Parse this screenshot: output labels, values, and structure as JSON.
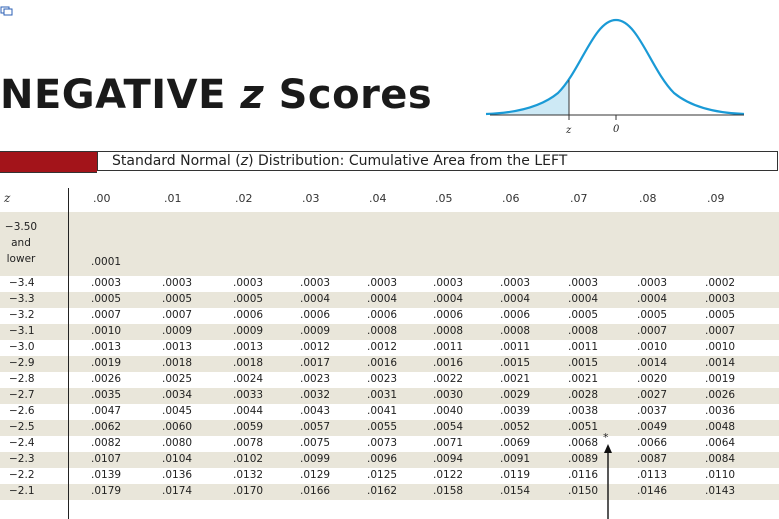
{
  "title": {
    "prefix": "NEGATIVE ",
    "z": "z",
    "suffix": " Scores"
  },
  "curve": {
    "label_z": "z",
    "label_zero": "0",
    "line_color": "#1a9ad6",
    "fill_color": "#cde9f5"
  },
  "header": {
    "before": "Standard Normal (",
    "z": "z",
    "after": ") Distribution: Cumulative Area from the LEFT",
    "accent_color": "#a3141a"
  },
  "columns": [
    "z",
    ".00",
    ".01",
    ".02",
    ".03",
    ".04",
    ".05",
    ".06",
    ".07",
    ".08",
    ".09"
  ],
  "first_row": {
    "label_lines": [
      "−3.50",
      "and",
      "lower"
    ],
    "value": ".0001"
  },
  "rows": [
    {
      "z": "−3.4",
      "values": [
        ".0003",
        ".0003",
        ".0003",
        ".0003",
        ".0003",
        ".0003",
        ".0003",
        ".0003",
        ".0003",
        ".0002"
      ]
    },
    {
      "z": "−3.3",
      "values": [
        ".0005",
        ".0005",
        ".0005",
        ".0004",
        ".0004",
        ".0004",
        ".0004",
        ".0004",
        ".0004",
        ".0003"
      ]
    },
    {
      "z": "−3.2",
      "values": [
        ".0007",
        ".0007",
        ".0006",
        ".0006",
        ".0006",
        ".0006",
        ".0006",
        ".0005",
        ".0005",
        ".0005"
      ]
    },
    {
      "z": "−3.1",
      "values": [
        ".0010",
        ".0009",
        ".0009",
        ".0009",
        ".0008",
        ".0008",
        ".0008",
        ".0008",
        ".0007",
        ".0007"
      ]
    },
    {
      "z": "−3.0",
      "values": [
        ".0013",
        ".0013",
        ".0013",
        ".0012",
        ".0012",
        ".0011",
        ".0011",
        ".0011",
        ".0010",
        ".0010"
      ]
    },
    {
      "z": "−2.9",
      "values": [
        ".0019",
        ".0018",
        ".0018",
        ".0017",
        ".0016",
        ".0016",
        ".0015",
        ".0015",
        ".0014",
        ".0014"
      ]
    },
    {
      "z": "−2.8",
      "values": [
        ".0026",
        ".0025",
        ".0024",
        ".0023",
        ".0023",
        ".0022",
        ".0021",
        ".0021",
        ".0020",
        ".0019"
      ]
    },
    {
      "z": "−2.7",
      "values": [
        ".0035",
        ".0034",
        ".0033",
        ".0032",
        ".0031",
        ".0030",
        ".0029",
        ".0028",
        ".0027",
        ".0026"
      ]
    },
    {
      "z": "−2.6",
      "values": [
        ".0047",
        ".0045",
        ".0044",
        ".0043",
        ".0041",
        ".0040",
        ".0039",
        ".0038",
        ".0037",
        ".0036"
      ]
    },
    {
      "z": "−2.5",
      "values": [
        ".0062",
        ".0060",
        ".0059",
        ".0057",
        ".0055",
        ".0054",
        ".0052",
        ".0051",
        ".0049",
        ".0048"
      ]
    },
    {
      "z": "−2.4",
      "values": [
        ".0082",
        ".0080",
        ".0078",
        ".0075",
        ".0073",
        ".0071",
        ".0069",
        ".0068",
        ".0066",
        ".0064"
      ]
    },
    {
      "z": "−2.3",
      "values": [
        ".0107",
        ".0104",
        ".0102",
        ".0099",
        ".0096",
        ".0094",
        ".0091",
        ".0089",
        ".0087",
        ".0084"
      ]
    },
    {
      "z": "−2.2",
      "values": [
        ".0139",
        ".0136",
        ".0132",
        ".0129",
        ".0125",
        ".0122",
        ".0119",
        ".0116",
        ".0113",
        ".0110"
      ]
    },
    {
      "z": "−2.1",
      "values": [
        ".0179",
        ".0174",
        ".0170",
        ".0166",
        ".0162",
        ".0158",
        ".0154",
        ".0150",
        ".0146",
        ".0143"
      ]
    }
  ],
  "marker": {
    "star": "*",
    "row": "−2.5",
    "between_columns": [
      ".07",
      ".08"
    ]
  },
  "band_color": "#e9e6da"
}
